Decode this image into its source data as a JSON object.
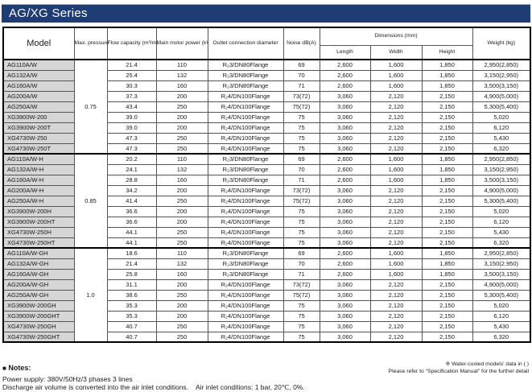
{
  "title": "AG/XG Series",
  "colors": {
    "banner_bg": "#1E3D75",
    "banner_text": "#FFFFFF",
    "model_cell_bg": "#D6D6D6",
    "grid_dark": "#000000",
    "grid_light": "#9A9A9A"
  },
  "table": {
    "headers": {
      "model": "Model",
      "max_pressure": "Max.\npressure\n(MPa)",
      "flow_capacity": "Flow\ncapacity\n(m³/min)",
      "motor_power": "Main\nmotor power\n(kW)",
      "outlet": "Outlet connection\ndiameter",
      "noise": "Noise\ndB(A)",
      "dimensions": "Dimensions (mm)",
      "length": "Length",
      "width": "Width",
      "height": "Height",
      "weight": "Weight\n(kg)"
    },
    "groups": [
      {
        "pressure": "0.75",
        "rows": [
          {
            "model": "AG110A/W",
            "flow": "21.4",
            "power": "110",
            "outlet": "R₂3/DN80Flange",
            "noise": "69",
            "length": "2,600",
            "width": "1,600",
            "height": "1,850",
            "weight": "2,950(2,850)"
          },
          {
            "model": "AG132A/W",
            "flow": "25.4",
            "power": "132",
            "outlet": "R₂3/DN80Flange",
            "noise": "70",
            "length": "2,600",
            "width": "1,600",
            "height": "1,850",
            "weight": "3,150(2,950)"
          },
          {
            "model": "AG160A/W",
            "flow": "30.3",
            "power": "160",
            "outlet": "R₂3/DN80Flange",
            "noise": "71",
            "length": "2,600",
            "width": "1,600",
            "height": "1,850",
            "weight": "3,500(3,150)"
          },
          {
            "model": "AG200A/W",
            "flow": "37.3",
            "power": "200",
            "outlet": "R₂4/DN100Flange",
            "noise": "73(72)",
            "length": "3,060",
            "width": "2,120",
            "height": "2,150",
            "weight": "4,900(5,000)"
          },
          {
            "model": "AG250A/W",
            "flow": "43.4",
            "power": "250",
            "outlet": "R₂4/DN100Flange",
            "noise": "75(72)",
            "length": "3,060",
            "width": "2,120",
            "height": "2,150",
            "weight": "5,300(5,400)"
          },
          {
            "model": "XG3900W-200",
            "flow": "39.0",
            "power": "200",
            "outlet": "R₂4/DN100Flange",
            "noise": "75",
            "length": "3,060",
            "width": "2,120",
            "height": "2,150",
            "weight": "5,020"
          },
          {
            "model": "XG3900W-200T",
            "flow": "39.0",
            "power": "200",
            "outlet": "R₂4/DN100Flange",
            "noise": "75",
            "length": "3,060",
            "width": "2,120",
            "height": "2,150",
            "weight": "6,120"
          },
          {
            "model": "XG4730W-250",
            "flow": "47.3",
            "power": "250",
            "outlet": "R₂4/DN100Flange",
            "noise": "75",
            "length": "3,060",
            "width": "2,120",
            "height": "2,150",
            "weight": "5,430"
          },
          {
            "model": "XG4730W-250T",
            "flow": "47.3",
            "power": "250",
            "outlet": "R₂4/DN100Flange",
            "noise": "75",
            "length": "3,060",
            "width": "2,120",
            "height": "2,150",
            "weight": "6,320"
          }
        ]
      },
      {
        "pressure": "0.85",
        "rows": [
          {
            "model": "AG110A/W-H",
            "flow": "20.2",
            "power": "110",
            "outlet": "R₂3/DN80Flange",
            "noise": "69",
            "length": "2,600",
            "width": "1,600",
            "height": "1,850",
            "weight": "2,950(2,850)"
          },
          {
            "model": "AG132A/W-H",
            "flow": "24.1",
            "power": "132",
            "outlet": "R₂3/DN80Flange",
            "noise": "70",
            "length": "2,600",
            "width": "1,600",
            "height": "1,850",
            "weight": "3,150(2,950)"
          },
          {
            "model": "AG160A/W-H",
            "flow": "28.8",
            "power": "160",
            "outlet": "R₂3/DN80Flange",
            "noise": "71",
            "length": "2,600",
            "width": "1,600",
            "height": "1,850",
            "weight": "3,500(3,150)"
          },
          {
            "model": "AG200A/W-H",
            "flow": "34.2",
            "power": "200",
            "outlet": "R₂4/DN100Flange",
            "noise": "73(72)",
            "length": "3,060",
            "width": "2,120",
            "height": "2,150",
            "weight": "4,900(5,000)"
          },
          {
            "model": "AG250A/W-H",
            "flow": "41.4",
            "power": "250",
            "outlet": "R₂4/DN100Flange",
            "noise": "75(72)",
            "length": "3,060",
            "width": "2,120",
            "height": "2,150",
            "weight": "5,300(5,400)"
          },
          {
            "model": "XG3900W-200H",
            "flow": "36.6",
            "power": "200",
            "outlet": "R₂4/DN100Flange",
            "noise": "75",
            "length": "3,060",
            "width": "2,120",
            "height": "2,150",
            "weight": "5,020"
          },
          {
            "model": "XG3900W-200HT",
            "flow": "36.6",
            "power": "200",
            "outlet": "R₂4/DN100Flange",
            "noise": "75",
            "length": "3,060",
            "width": "2,120",
            "height": "2,150",
            "weight": "6,120"
          },
          {
            "model": "XG4730W-250H",
            "flow": "44.1",
            "power": "250",
            "outlet": "R₂4/DN100Flange",
            "noise": "75",
            "length": "3,060",
            "width": "2,120",
            "height": "2,150",
            "weight": "5,430"
          },
          {
            "model": "XG4730W-250HT",
            "flow": "44.1",
            "power": "250",
            "outlet": "R₂4/DN100Flange",
            "noise": "75",
            "length": "3,060",
            "width": "2,120",
            "height": "2,150",
            "weight": "6,320"
          }
        ]
      },
      {
        "pressure": "1.0",
        "rows": [
          {
            "model": "AG110A/W-GH",
            "flow": "18.6",
            "power": "110",
            "outlet": "R₂3/DN80Flange",
            "noise": "69",
            "length": "2,600",
            "width": "1,600",
            "height": "1,850",
            "weight": "2,950(2,850)"
          },
          {
            "model": "AG132A/W-GH",
            "flow": "21.4",
            "power": "132",
            "outlet": "R₂3/DN80Flange",
            "noise": "70",
            "length": "2,600",
            "width": "1,600",
            "height": "1,850",
            "weight": "3,150(2,950)"
          },
          {
            "model": "AG160A/W-GH",
            "flow": "25.8",
            "power": "160",
            "outlet": "R₂3/DN80Flange",
            "noise": "71",
            "length": "2,600",
            "width": "1,600",
            "height": "1,850",
            "weight": "3,500(3,150)"
          },
          {
            "model": "AG200A/W-GH",
            "flow": "31.1",
            "power": "200",
            "outlet": "R₂4/DN100Flange",
            "noise": "73(72)",
            "length": "3,060",
            "width": "2,120",
            "height": "2,150",
            "weight": "4,900(5,000)"
          },
          {
            "model": "AG250A/W-GH",
            "flow": "38.6",
            "power": "250",
            "outlet": "R₂4/DN100Flange",
            "noise": "75(72)",
            "length": "3,060",
            "width": "2,120",
            "height": "2,150",
            "weight": "5,300(5,400)"
          },
          {
            "model": "XG3900W-200GH",
            "flow": "35.3",
            "power": "200",
            "outlet": "R₂4/DN100Flange",
            "noise": "75",
            "length": "3,060",
            "width": "2,120",
            "height": "2,150",
            "weight": "5,020"
          },
          {
            "model": "XG3900W-200GHT",
            "flow": "35.3",
            "power": "200",
            "outlet": "R₂4/DN100Flange",
            "noise": "75",
            "length": "3,060",
            "width": "2,120",
            "height": "2,150",
            "weight": "6,120"
          },
          {
            "model": "XG4730W-250GH",
            "flow": "40.7",
            "power": "250",
            "outlet": "R₂4/DN100Flange",
            "noise": "75",
            "length": "3,060",
            "width": "2,120",
            "height": "2,150",
            "weight": "5,430"
          },
          {
            "model": "XG4730W-250GHT",
            "flow": "40.7",
            "power": "250",
            "outlet": "R₂4/DN100Flange",
            "noise": "75",
            "length": "3,060",
            "width": "2,120",
            "height": "2,150",
            "weight": "6,320"
          }
        ]
      }
    ]
  },
  "notes": {
    "icon": "■",
    "title": "Notes:",
    "lines": [
      "Power supply: 380V/50Hz/3 phases 3 lines",
      "Discharge air volume is converted into the air inlet conditions.    Air inlet conditions: 1 bar, 20℃, 0%."
    ],
    "right_lines": [
      "※ Water-cooled models' data in ( )",
      "Please refer to \"Specification Manual\" for the further detail"
    ]
  }
}
